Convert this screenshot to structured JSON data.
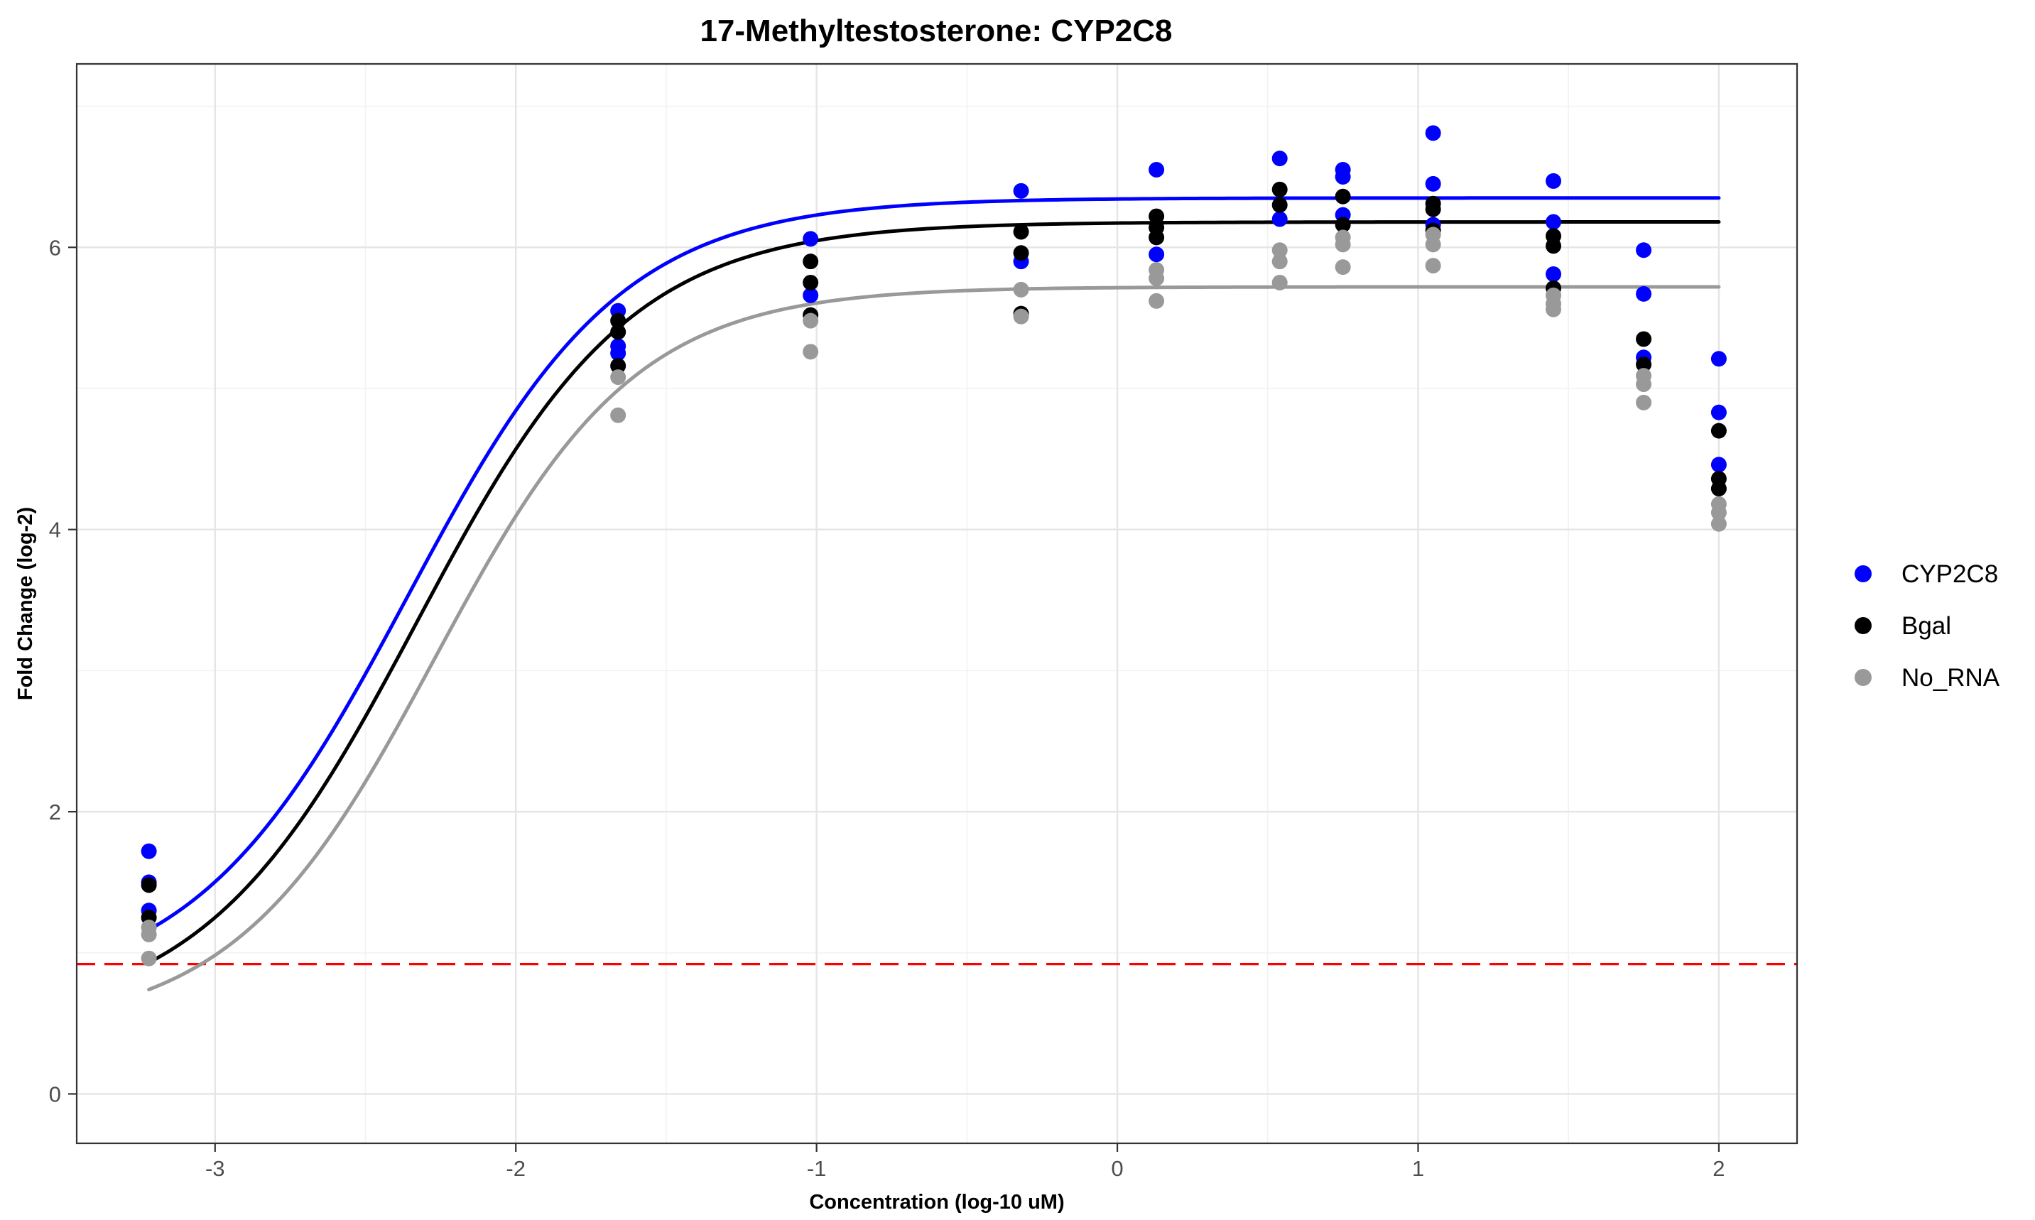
{
  "chart_data": {
    "type": "scatter",
    "title": "17-Methyltestosterone: CYP2C8",
    "xlabel": "Concentration (log-10 uM)",
    "ylabel": "Fold Change (log-2)",
    "xlim": [
      -3.46,
      2.26
    ],
    "ylim": [
      -0.35,
      7.3
    ],
    "x_ticks": [
      -3,
      -2,
      -1,
      0,
      1,
      2
    ],
    "x_tick_labels": [
      "-3",
      "-2",
      "-1",
      "0",
      "1",
      "2"
    ],
    "y_ticks": [
      0,
      2,
      4,
      6
    ],
    "y_tick_labels": [
      "0",
      "2",
      "4",
      "6"
    ],
    "grid": true,
    "legend_position": "right",
    "reference_line": {
      "y": 0.92,
      "color": "#ff0000",
      "style": "dashed"
    },
    "series": [
      {
        "name": "CYP2C8",
        "color": "#0000ff",
        "points": [
          [
            -3.22,
            1.72
          ],
          [
            -3.22,
            1.5
          ],
          [
            -3.22,
            1.3
          ],
          [
            -1.66,
            5.55
          ],
          [
            -1.66,
            5.3
          ],
          [
            -1.66,
            5.25
          ],
          [
            -1.02,
            6.06
          ],
          [
            -1.02,
            5.66
          ],
          [
            -0.32,
            6.4
          ],
          [
            -0.32,
            5.9
          ],
          [
            0.13,
            6.55
          ],
          [
            0.13,
            5.95
          ],
          [
            0.54,
            6.63
          ],
          [
            0.54,
            6.2
          ],
          [
            0.75,
            6.55
          ],
          [
            0.75,
            6.5
          ],
          [
            0.75,
            6.23
          ],
          [
            1.05,
            6.81
          ],
          [
            1.05,
            6.45
          ],
          [
            1.05,
            6.16
          ],
          [
            1.45,
            6.47
          ],
          [
            1.45,
            6.18
          ],
          [
            1.45,
            5.81
          ],
          [
            1.75,
            5.98
          ],
          [
            1.75,
            5.67
          ],
          [
            1.75,
            5.22
          ],
          [
            2.0,
            5.21
          ],
          [
            2.0,
            4.83
          ],
          [
            2.0,
            4.46
          ]
        ],
        "curve": {
          "bottom": 0.7,
          "top": 6.35,
          "ec50_log": -2.36,
          "hill": 1.22
        }
      },
      {
        "name": "Bgal",
        "color": "#000000",
        "points": [
          [
            -3.22,
            1.48
          ],
          [
            -3.22,
            1.25
          ],
          [
            -1.66,
            5.48
          ],
          [
            -1.66,
            5.4
          ],
          [
            -1.66,
            5.16
          ],
          [
            -1.02,
            5.9
          ],
          [
            -1.02,
            5.75
          ],
          [
            -1.02,
            5.52
          ],
          [
            -0.32,
            6.11
          ],
          [
            -0.32,
            5.96
          ],
          [
            -0.32,
            5.53
          ],
          [
            0.13,
            6.22
          ],
          [
            0.13,
            6.14
          ],
          [
            0.13,
            6.07
          ],
          [
            0.54,
            6.41
          ],
          [
            0.54,
            6.3
          ],
          [
            0.75,
            6.36
          ],
          [
            0.75,
            6.16
          ],
          [
            1.05,
            6.31
          ],
          [
            1.05,
            6.27
          ],
          [
            1.05,
            6.12
          ],
          [
            1.45,
            6.08
          ],
          [
            1.45,
            6.01
          ],
          [
            1.45,
            5.71
          ],
          [
            1.75,
            5.35
          ],
          [
            1.75,
            5.17
          ],
          [
            2.0,
            4.7
          ],
          [
            2.0,
            4.36
          ],
          [
            2.0,
            4.29
          ]
        ],
        "curve": {
          "bottom": 0.5,
          "top": 6.18,
          "ec50_log": -2.33,
          "hill": 1.22
        }
      },
      {
        "name": "No_RNA",
        "color": "#999999",
        "points": [
          [
            -3.22,
            1.18
          ],
          [
            -3.22,
            1.13
          ],
          [
            -3.22,
            0.96
          ],
          [
            -1.66,
            5.08
          ],
          [
            -1.66,
            4.81
          ],
          [
            -1.02,
            5.48
          ],
          [
            -1.02,
            5.26
          ],
          [
            -0.32,
            5.7
          ],
          [
            -0.32,
            5.51
          ],
          [
            0.13,
            5.84
          ],
          [
            0.13,
            5.78
          ],
          [
            0.13,
            5.62
          ],
          [
            0.54,
            5.98
          ],
          [
            0.54,
            5.9
          ],
          [
            0.54,
            5.75
          ],
          [
            0.75,
            6.07
          ],
          [
            0.75,
            6.02
          ],
          [
            0.75,
            5.86
          ],
          [
            1.05,
            6.09
          ],
          [
            1.05,
            6.02
          ],
          [
            1.05,
            5.87
          ],
          [
            1.45,
            5.66
          ],
          [
            1.45,
            5.6
          ],
          [
            1.45,
            5.56
          ],
          [
            1.75,
            5.09
          ],
          [
            1.75,
            5.03
          ],
          [
            1.75,
            4.9
          ],
          [
            2.0,
            4.18
          ],
          [
            2.0,
            4.12
          ],
          [
            2.0,
            4.04
          ]
        ],
        "curve": {
          "bottom": 0.45,
          "top": 5.72,
          "ec50_log": -2.27,
          "hill": 1.3
        }
      }
    ]
  }
}
